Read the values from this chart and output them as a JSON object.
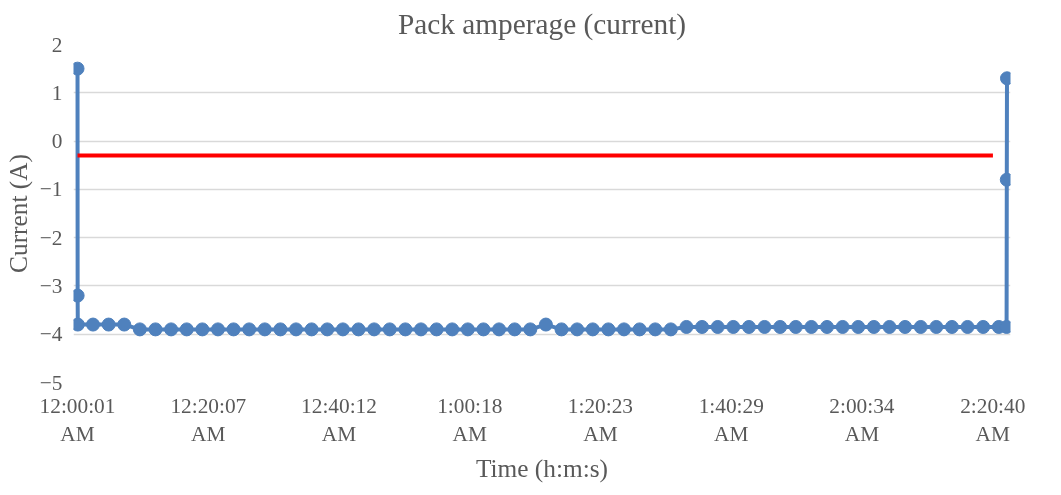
{
  "chart_data": {
    "type": "line",
    "title": "Pack amperage (current)",
    "xlabel": "Time (h:m:s)",
    "ylabel": "Current (A)",
    "xlim": [
      -0.01,
      2.39
    ],
    "ylim": [
      -5,
      2
    ],
    "yticks": [
      -5,
      -4,
      -3,
      -2,
      -1,
      0,
      1,
      2
    ],
    "xticks": [
      {
        "value": 0.000278,
        "label": "12:00:01\nAM"
      },
      {
        "value": 0.33528,
        "label": "12:20:07\nAM"
      },
      {
        "value": 0.67,
        "label": "12:40:12\nAM"
      },
      {
        "value": 1.005,
        "label": "1:00:18\nAM"
      },
      {
        "value": 1.33972,
        "label": "1:20:23\nAM"
      },
      {
        "value": 1.67472,
        "label": "1:40:29\nAM"
      },
      {
        "value": 2.00944,
        "label": "2:00:34\nAM"
      },
      {
        "value": 2.34444,
        "label": "2:20:40\nAM"
      }
    ],
    "grid": "y",
    "series": [
      {
        "color": "#4f81bd",
        "marker": "circle",
        "x": [
          0.0003,
          0.0006,
          0.001,
          0.04,
          0.08,
          0.12,
          0.16,
          0.2,
          0.24,
          0.28,
          0.32,
          0.36,
          0.4,
          0.44,
          0.48,
          0.52,
          0.56,
          0.6,
          0.64,
          0.68,
          0.72,
          0.76,
          0.8,
          0.84,
          0.88,
          0.92,
          0.96,
          1.0,
          1.04,
          1.08,
          1.12,
          1.16,
          1.2,
          1.24,
          1.28,
          1.32,
          1.36,
          1.4,
          1.44,
          1.48,
          1.52,
          1.56,
          1.6,
          1.64,
          1.68,
          1.72,
          1.76,
          1.8,
          1.84,
          1.88,
          1.92,
          1.96,
          2.0,
          2.04,
          2.08,
          2.12,
          2.16,
          2.2,
          2.24,
          2.28,
          2.32,
          2.36,
          2.38,
          2.3805,
          2.381
        ],
        "values": [
          1.5,
          -3.2,
          -3.8,
          -3.8,
          -3.8,
          -3.8,
          -3.9,
          -3.9,
          -3.9,
          -3.9,
          -3.9,
          -3.9,
          -3.9,
          -3.9,
          -3.9,
          -3.9,
          -3.9,
          -3.9,
          -3.9,
          -3.9,
          -3.9,
          -3.9,
          -3.9,
          -3.9,
          -3.9,
          -3.9,
          -3.9,
          -3.9,
          -3.9,
          -3.9,
          -3.9,
          -3.9,
          -3.8,
          -3.9,
          -3.9,
          -3.9,
          -3.9,
          -3.9,
          -3.9,
          -3.9,
          -3.9,
          -3.85,
          -3.85,
          -3.85,
          -3.85,
          -3.85,
          -3.85,
          -3.85,
          -3.85,
          -3.85,
          -3.85,
          -3.85,
          -3.85,
          -3.85,
          -3.85,
          -3.85,
          -3.85,
          -3.85,
          -3.85,
          -3.85,
          -3.85,
          -3.85,
          -3.85,
          -0.8,
          1.3
        ]
      },
      {
        "color": "#ff0000",
        "marker": "none",
        "x": [
          0.0003,
          2.345
        ],
        "values": [
          -0.3,
          -0.3
        ]
      }
    ]
  }
}
